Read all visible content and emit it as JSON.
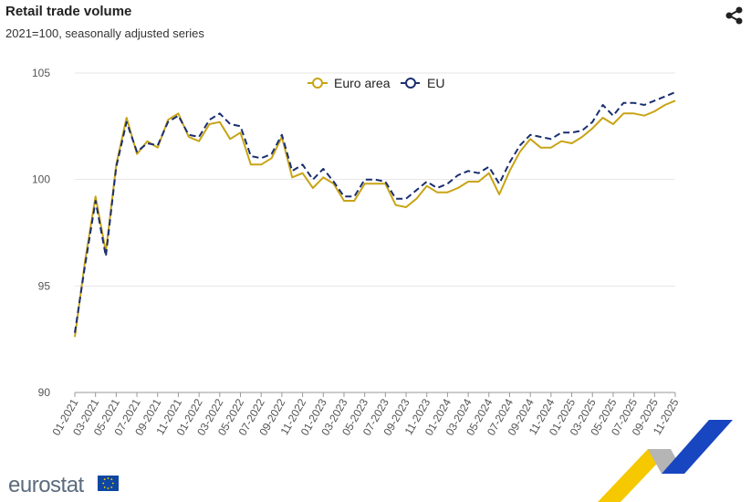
{
  "header": {
    "title": "Retail trade volume",
    "subtitle": "2021=100, seasonally adjusted series"
  },
  "toolbar": {
    "share_icon": "share-icon"
  },
  "brand": {
    "name": "eurostat",
    "flag_icon": "eu-flag-icon",
    "decoration": "eurostat-ribbon-graphic"
  },
  "colors": {
    "euro_area": "#c8a415",
    "eu": "#1a2f6f",
    "grid": "#e6e6e6",
    "axis": "#555555"
  },
  "chart_data": {
    "type": "line",
    "title": "Retail trade volume",
    "subtitle": "2021=100, seasonally adjusted series",
    "xlabel": "",
    "ylabel": "",
    "ylim": [
      90,
      105
    ],
    "yticks": [
      90,
      95,
      100,
      105
    ],
    "grid": true,
    "legend_position": "top-center",
    "x": [
      "01-2021",
      "02-2021",
      "03-2021",
      "04-2021",
      "05-2021",
      "06-2021",
      "07-2021",
      "08-2021",
      "09-2021",
      "10-2021",
      "11-2021",
      "12-2021",
      "01-2022",
      "02-2022",
      "03-2022",
      "04-2022",
      "05-2022",
      "06-2022",
      "07-2022",
      "08-2022",
      "09-2022",
      "10-2022",
      "11-2022",
      "12-2022",
      "01-2023",
      "02-2023",
      "03-2023",
      "04-2023",
      "05-2023",
      "06-2023",
      "07-2023",
      "08-2023",
      "09-2023",
      "10-2023",
      "11-2023",
      "12-2023",
      "01-2024",
      "02-2024",
      "03-2024",
      "04-2024",
      "05-2024",
      "06-2024",
      "07-2024",
      "08-2024",
      "09-2024",
      "10-2024",
      "11-2024",
      "12-2024",
      "01-2025",
      "02-2025",
      "03-2025",
      "04-2025",
      "05-2025",
      "06-2025",
      "07-2025",
      "08-2025",
      "09-2025",
      "10-2025",
      "11-2025"
    ],
    "x_tick_labels": [
      "01-2021",
      "03-2021",
      "05-2021",
      "07-2021",
      "09-2021",
      "11-2021",
      "01-2022",
      "03-2022",
      "05-2022",
      "07-2022",
      "09-2022",
      "11-2022",
      "01-2023",
      "03-2023",
      "05-2023",
      "07-2023",
      "09-2023",
      "11-2023",
      "01-2024",
      "03-2024",
      "05-2024",
      "07-2024",
      "09-2024",
      "11-2024",
      "01-2025",
      "03-2025",
      "05-2025",
      "07-2025",
      "09-2025",
      "11-2025"
    ],
    "series": [
      {
        "name": "Euro area",
        "color": "#c8a415",
        "style": "solid",
        "values": [
          92.6,
          96.2,
          99.2,
          96.6,
          100.7,
          102.9,
          101.2,
          101.8,
          101.5,
          102.8,
          103.1,
          102.0,
          101.8,
          102.6,
          102.7,
          101.9,
          102.2,
          100.7,
          100.7,
          101.0,
          102.0,
          100.1,
          100.3,
          99.6,
          100.1,
          99.8,
          99.0,
          99.0,
          99.8,
          99.8,
          99.8,
          98.8,
          98.7,
          99.1,
          99.7,
          99.4,
          99.4,
          99.6,
          99.9,
          99.9,
          100.3,
          99.3,
          100.4,
          101.3,
          101.9,
          101.5,
          101.5,
          101.8,
          101.7,
          102.0,
          102.4,
          102.9,
          102.6,
          103.1,
          103.1,
          103.0,
          103.2,
          103.5,
          103.7
        ]
      },
      {
        "name": "EU",
        "color": "#1a2f6f",
        "style": "dashed",
        "values": [
          92.8,
          96.0,
          99.0,
          96.4,
          100.6,
          102.7,
          101.3,
          101.7,
          101.6,
          102.7,
          103.0,
          102.1,
          102.0,
          102.8,
          103.1,
          102.6,
          102.5,
          101.1,
          101.0,
          101.2,
          102.1,
          100.4,
          100.7,
          100.0,
          100.5,
          99.9,
          99.2,
          99.2,
          100.0,
          100.0,
          99.9,
          99.1,
          99.1,
          99.5,
          99.9,
          99.6,
          99.8,
          100.2,
          100.4,
          100.3,
          100.6,
          99.8,
          100.8,
          101.6,
          102.1,
          102.0,
          101.9,
          102.2,
          102.2,
          102.3,
          102.7,
          103.5,
          103.0,
          103.6,
          103.6,
          103.5,
          103.7,
          103.9,
          104.1
        ]
      }
    ]
  }
}
